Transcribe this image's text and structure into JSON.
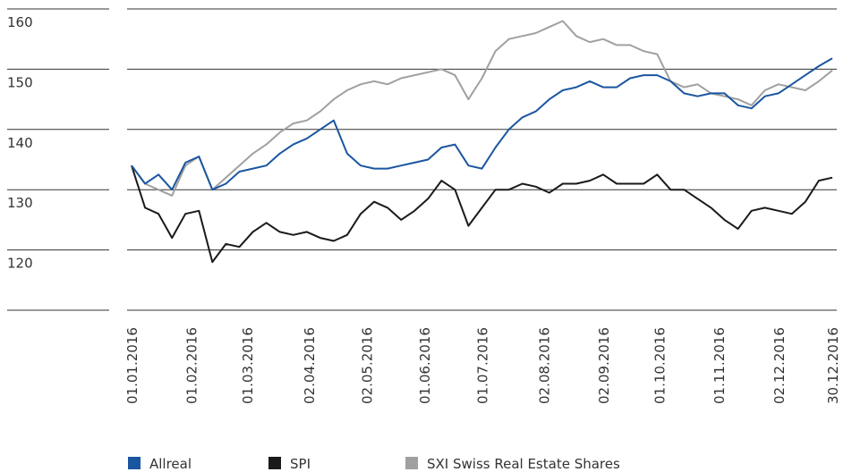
{
  "chart_data": {
    "type": "line",
    "x": [
      "01.01.2016",
      "08.01.2016",
      "15.01.2016",
      "22.01.2016",
      "29.01.2016",
      "05.02.2016",
      "12.02.2016",
      "19.02.2016",
      "26.02.2016",
      "04.03.2016",
      "11.03.2016",
      "18.03.2016",
      "25.03.2016",
      "01.04.2016",
      "08.04.2016",
      "15.04.2016",
      "22.04.2016",
      "29.04.2016",
      "06.05.2016",
      "13.05.2016",
      "20.05.2016",
      "27.05.2016",
      "03.06.2016",
      "10.06.2016",
      "17.06.2016",
      "24.06.2016",
      "01.07.2016",
      "08.07.2016",
      "15.07.2016",
      "22.07.2016",
      "29.07.2016",
      "05.08.2016",
      "12.08.2016",
      "19.08.2016",
      "26.08.2016",
      "02.09.2016",
      "09.09.2016",
      "16.09.2016",
      "23.09.2016",
      "30.09.2016",
      "07.10.2016",
      "14.10.2016",
      "21.10.2016",
      "28.10.2016",
      "04.11.2016",
      "11.11.2016",
      "18.11.2016",
      "25.11.2016",
      "02.12.2016",
      "09.12.2016",
      "16.12.2016",
      "23.12.2016",
      "30.12.2016"
    ],
    "series": [
      {
        "name": "Allreal",
        "color": "#1a56a0",
        "values": [
          134,
          131,
          132.5,
          130,
          134.5,
          135.5,
          130,
          131,
          133,
          133.5,
          134,
          136,
          137.5,
          138.5,
          140,
          141.5,
          136,
          134,
          133.5,
          133.5,
          134,
          134.5,
          135,
          137,
          137.5,
          134,
          133.5,
          137,
          140,
          142,
          143,
          145,
          146.5,
          147,
          148,
          147,
          147,
          148.5,
          149,
          149,
          148,
          146,
          145.5,
          146,
          146,
          144,
          143.5,
          145.5,
          146,
          147.5,
          149,
          150.5,
          151.8
        ]
      },
      {
        "name": "SPI",
        "color": "#1a1a1a",
        "values": [
          134,
          127,
          126,
          122,
          126,
          126.5,
          118,
          121,
          120.5,
          123,
          124.5,
          123,
          122.5,
          123,
          122,
          121.5,
          122.5,
          126,
          128,
          127,
          125,
          126.5,
          128.5,
          131.5,
          130,
          124,
          127,
          130,
          130,
          131,
          130.5,
          129.5,
          131,
          131,
          131.5,
          132.5,
          131,
          131,
          131,
          132.5,
          130,
          130,
          128.5,
          127,
          125,
          123.5,
          126.5,
          127,
          126.5,
          126,
          128,
          131.5,
          132
        ]
      },
      {
        "name": "SXI Swiss Real Estate Shares",
        "color": "#a0a0a0",
        "values": [
          134,
          131,
          130,
          129,
          134,
          135.5,
          130,
          132,
          134,
          136,
          137.5,
          139.5,
          141,
          141.5,
          143,
          145,
          146.5,
          147.5,
          148,
          147.5,
          148.5,
          149,
          149.5,
          150,
          149,
          145,
          148.5,
          153,
          155,
          155.5,
          156,
          157,
          158,
          155.5,
          154.5,
          155,
          154,
          154,
          153,
          152.5,
          148,
          147,
          147.5,
          146,
          145.5,
          145,
          144,
          146.5,
          147.5,
          147,
          146.5,
          148,
          149.8
        ]
      }
    ],
    "xlim": [
      "01.01.2016",
      "30.12.2016"
    ],
    "xticks": [
      "01.01.2016",
      "01.02.2016",
      "01.03.2016",
      "02.04.2016",
      "02.05.2016",
      "01.06.2016",
      "01.07.2016",
      "02.08.2016",
      "02.09.2016",
      "01.10.2016",
      "01.11.2016",
      "02.12.2016",
      "30.12.2016"
    ],
    "ylim": [
      110,
      160
    ],
    "yticks": [
      120,
      130,
      140,
      150,
      160
    ],
    "grid": true
  }
}
